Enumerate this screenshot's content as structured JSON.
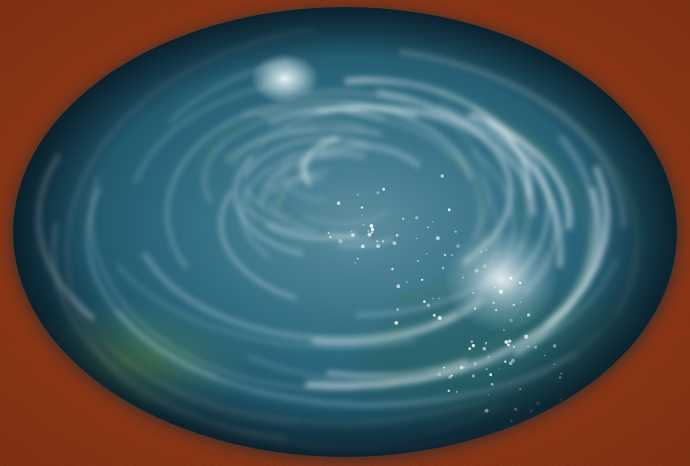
{
  "colors": {
    "backdrop": "#a8441c",
    "backdrop_dark": "#8a3414",
    "water_deep": "#0e3345",
    "water_mid": "#2e6a80",
    "water_teal": "#3f7c6a",
    "water_green": "#4f7a3c",
    "foam": "#e8f2f4",
    "highlight": "#ffffff",
    "rim_dark": "#081a24"
  },
  "subject": {
    "motion_direction": "counter-clockwise"
  }
}
